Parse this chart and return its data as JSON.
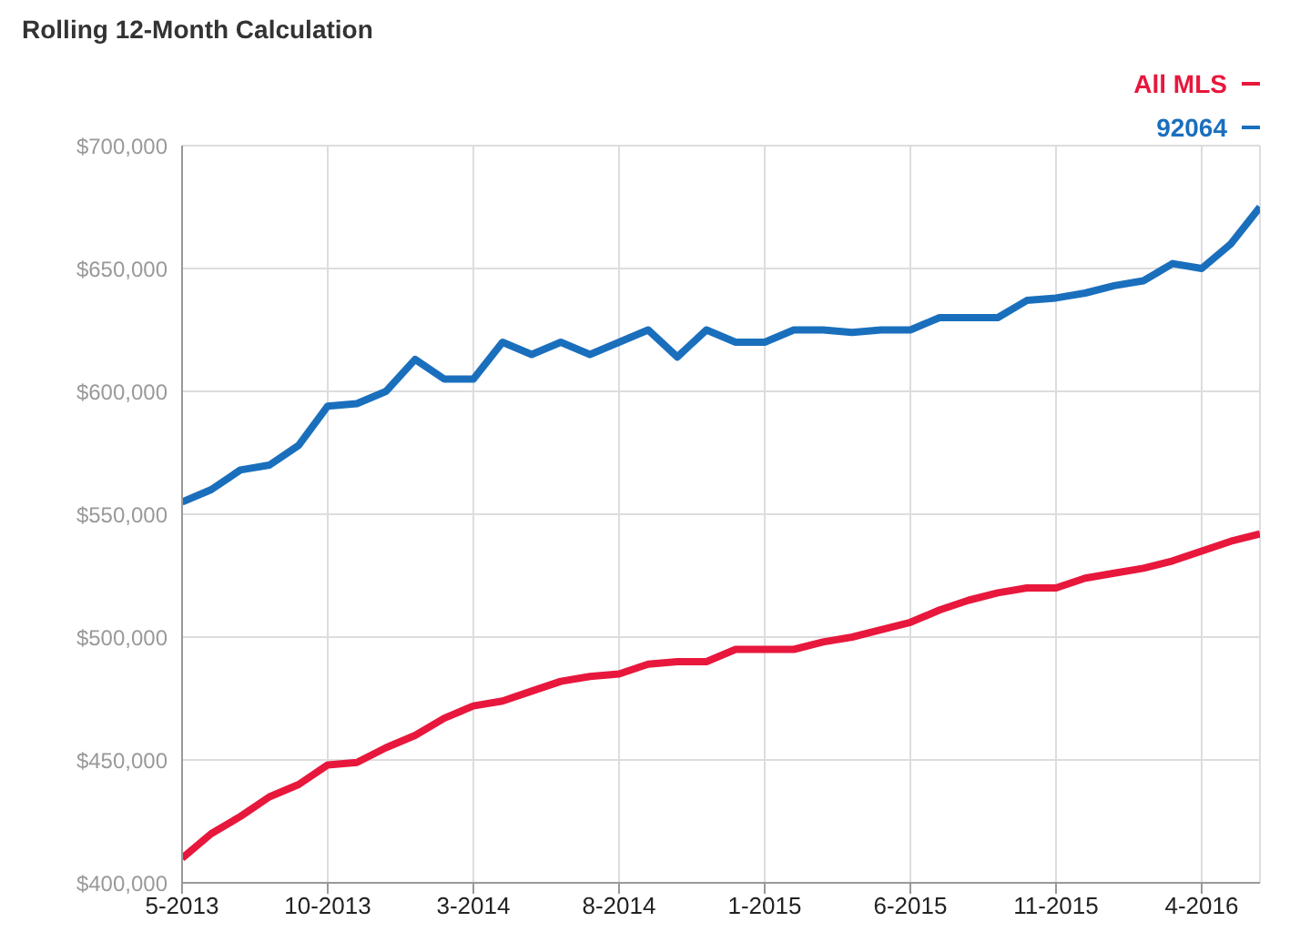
{
  "chart_data": {
    "type": "line",
    "title": "Rolling 12-Month Calculation",
    "categories": [
      "5-2013",
      null,
      null,
      null,
      null,
      "10-2013",
      null,
      null,
      null,
      null,
      "3-2014",
      null,
      null,
      null,
      null,
      "8-2014",
      null,
      null,
      null,
      null,
      "1-2015",
      null,
      null,
      null,
      null,
      "6-2015",
      null,
      null,
      null,
      null,
      "11-2015",
      null,
      null,
      null,
      null,
      "4-2016",
      null,
      null
    ],
    "series": [
      {
        "name": "All MLS",
        "color": "#e8173c",
        "values": [
          410000,
          420000,
          427000,
          435000,
          440000,
          448000,
          449000,
          455000,
          460000,
          467000,
          472000,
          474000,
          478000,
          482000,
          484000,
          485000,
          489000,
          490000,
          490000,
          495000,
          495000,
          495000,
          498000,
          500000,
          503000,
          506000,
          511000,
          515000,
          518000,
          520000,
          520000,
          524000,
          526000,
          528000,
          531000,
          535000,
          539000,
          542000
        ]
      },
      {
        "name": "92064",
        "color": "#1a6fbd",
        "values": [
          555000,
          560000,
          568000,
          570000,
          578000,
          594000,
          595000,
          600000,
          613000,
          605000,
          605000,
          620000,
          615000,
          620000,
          615000,
          620000,
          625000,
          614000,
          625000,
          620000,
          620000,
          625000,
          625000,
          624000,
          625000,
          625000,
          630000,
          630000,
          630000,
          637000,
          638000,
          640000,
          643000,
          645000,
          652000,
          650000,
          660000,
          675000
        ]
      }
    ],
    "ylim": [
      400000,
      700000
    ],
    "yticks": [
      {
        "value": 400000,
        "label": "$400,000"
      },
      {
        "value": 450000,
        "label": "$450,000"
      },
      {
        "value": 500000,
        "label": "$500,000"
      },
      {
        "value": 550000,
        "label": "$550,000"
      },
      {
        "value": 600000,
        "label": "$600,000"
      },
      {
        "value": 650000,
        "label": "$650,000"
      },
      {
        "value": 700000,
        "label": "$700,000"
      }
    ],
    "grid": true,
    "legend": "top right",
    "marker": "none",
    "line_style": "solid"
  }
}
